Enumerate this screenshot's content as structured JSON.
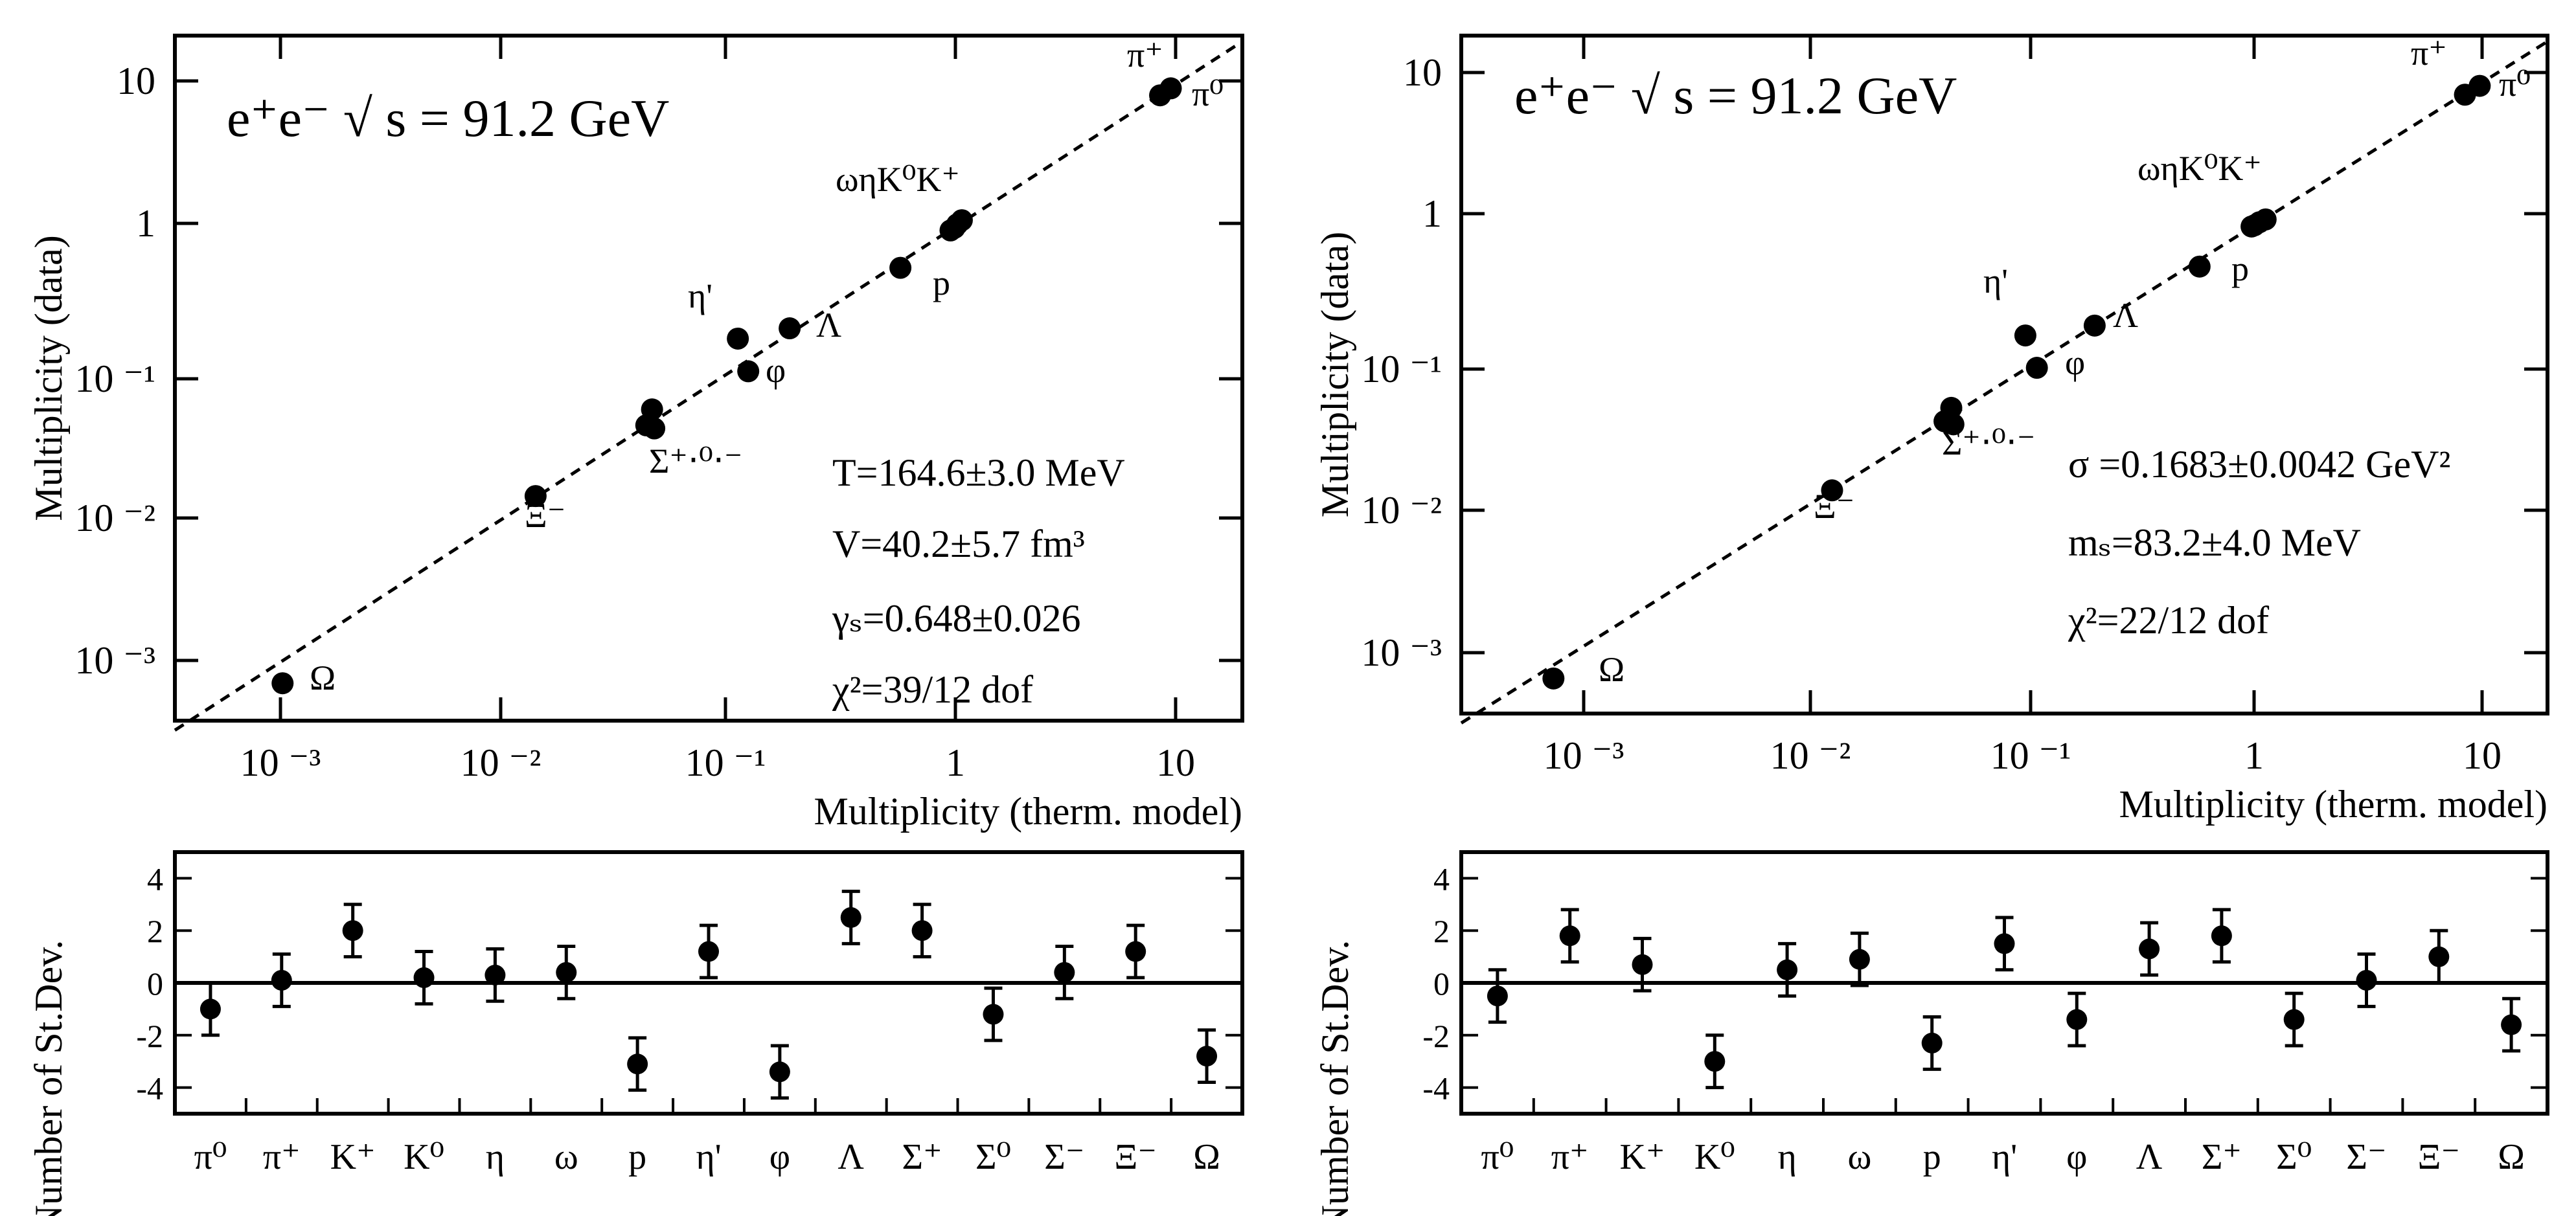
{
  "chart_data": [
    {
      "type": "scatter",
      "panel": "left-top",
      "title": "e⁺e⁻ √ s = 91.2 GeV",
      "xlabel": "Multiplicity (therm. model)",
      "ylabel": "Multiplicity (data)",
      "xscale": "log",
      "yscale": "log",
      "xlim": [
        0.0003,
        20
      ],
      "ylim": [
        0.00035,
        22
      ],
      "x_ticks": [
        "10 ⁻³",
        "10 ⁻²",
        "10 ⁻¹",
        "1",
        "10"
      ],
      "y_ticks": [
        "10 ⁻³",
        "10 ⁻²",
        "10 ⁻¹",
        "1",
        "10"
      ],
      "diagonal": "y = x (dashed)",
      "points": [
        {
          "x": 9.5,
          "y": 9.4,
          "label": "π⁰"
        },
        {
          "x": 8.5,
          "y": 8.4,
          "label": "π⁺"
        },
        {
          "x": 1.08,
          "y": 1.12,
          "label": "K⁺"
        },
        {
          "x": 1.03,
          "y": 1.05,
          "label": "K⁰"
        },
        {
          "x": 1.0,
          "y": 0.99,
          "label": "η"
        },
        {
          "x": 0.96,
          "y": 0.95,
          "label": "ω"
        },
        {
          "x": 0.57,
          "y": 0.52,
          "label": "p"
        },
        {
          "x": 0.105,
          "y": 0.166,
          "label": "η'"
        },
        {
          "x": 0.117,
          "y": 0.098,
          "label": "φ"
        },
        {
          "x": 0.18,
          "y": 0.196,
          "label": "Λ"
        },
        {
          "x": 0.043,
          "y": 0.053,
          "label": "Σ⁺"
        },
        {
          "x": 0.0405,
          "y": 0.041,
          "label": "Σ⁰"
        },
        {
          "x": 0.044,
          "y": 0.039,
          "label": "Σ⁻"
        },
        {
          "x": 0.0128,
          "y": 0.0131,
          "label": "Ξ⁻"
        },
        {
          "x": 0.00092,
          "y": 0.00064,
          "label": "Ω"
        }
      ],
      "point_labels": [
        "π⁺",
        "π⁰",
        "ωηK⁰K⁺",
        "p",
        "η'",
        "Λ",
        "φ",
        "Σ⁺‧⁰‧⁻",
        "Ξ⁻",
        "Ω"
      ],
      "params": [
        "T=164.6±3.0 MeV",
        "V=40.2±5.7 fm³",
        "γₛ=0.648±0.026",
        "χ²=39/12 dof"
      ]
    },
    {
      "type": "scatter",
      "panel": "right-top",
      "title": "e⁺e⁻ √ s = 91.2 GeV",
      "xlabel": "Multiplicity (therm. model)",
      "ylabel": "Multiplicity (data)",
      "xscale": "log",
      "yscale": "log",
      "xlim": [
        0.0003,
        20
      ],
      "ylim": [
        0.00035,
        22
      ],
      "x_ticks": [
        "10 ⁻³",
        "10 ⁻²",
        "10 ⁻¹",
        "1",
        "10"
      ],
      "y_ticks": [
        "10 ⁻³",
        "10 ⁻²",
        "10 ⁻¹",
        "1",
        "10"
      ],
      "diagonal": "y = x (dashed)",
      "points": [
        {
          "x": 10.0,
          "y": 9.7,
          "label": "π⁰"
        },
        {
          "x": 8.6,
          "y": 8.4,
          "label": "π⁺"
        },
        {
          "x": 1.12,
          "y": 1.1,
          "label": "K⁺"
        },
        {
          "x": 1.05,
          "y": 1.05,
          "label": "K⁰"
        },
        {
          "x": 1.0,
          "y": 1.0,
          "label": "η"
        },
        {
          "x": 0.97,
          "y": 0.98,
          "label": "ω"
        },
        {
          "x": 0.57,
          "y": 0.51,
          "label": "p"
        },
        {
          "x": 0.096,
          "y": 0.166,
          "label": "η'"
        },
        {
          "x": 0.108,
          "y": 0.098,
          "label": "φ"
        },
        {
          "x": 0.195,
          "y": 0.195,
          "label": "Λ"
        },
        {
          "x": 0.045,
          "y": 0.051,
          "label": "Σ⁺"
        },
        {
          "x": 0.042,
          "y": 0.041,
          "label": "Σ⁰"
        },
        {
          "x": 0.046,
          "y": 0.039,
          "label": "Σ⁻"
        },
        {
          "x": 0.0133,
          "y": 0.0133,
          "label": "Ξ⁻"
        },
        {
          "x": 0.00077,
          "y": 0.00062,
          "label": "Ω"
        }
      ],
      "point_labels": [
        "π⁺",
        "π⁰",
        "ωηK⁰K⁺",
        "p",
        "η'",
        "Λ",
        "φ",
        "Σ⁺‧⁰‧⁻",
        "Ξ⁻",
        "Ω"
      ],
      "params": [
        "σ =0.1683±0.0042 GeV²",
        "mₛ=83.2±4.0 MeV",
        "χ²=22/12 dof"
      ]
    },
    {
      "type": "scatter",
      "panel": "left-bottom",
      "ylabel": "Number of St.Dev.",
      "ylim": [
        -5,
        5
      ],
      "y_ticks": [
        "4",
        "2",
        "0",
        "-2",
        "-4"
      ],
      "categories": [
        "π⁰",
        "π⁺",
        "K⁺",
        "K⁰",
        "η",
        "ω",
        "p",
        "η'",
        "φ",
        "Λ",
        "Σ⁺",
        "Σ⁰",
        "Σ⁻",
        "Ξ⁻",
        "Ω"
      ],
      "values": [
        -1.0,
        0.1,
        2.0,
        0.2,
        0.3,
        0.4,
        -3.1,
        1.2,
        -3.4,
        2.5,
        2.0,
        -1.2,
        0.4,
        1.2,
        -2.8
      ],
      "errors": [
        1,
        1,
        1,
        1,
        1,
        1,
        1,
        1,
        1,
        1,
        1,
        1,
        1,
        1,
        1
      ]
    },
    {
      "type": "scatter",
      "panel": "right-bottom",
      "ylabel": "Number of St.Dev.",
      "ylim": [
        -5,
        5
      ],
      "y_ticks": [
        "4",
        "2",
        "0",
        "-2",
        "-4"
      ],
      "categories": [
        "π⁰",
        "π⁺",
        "K⁺",
        "K⁰",
        "η",
        "ω",
        "p",
        "η'",
        "φ",
        "Λ",
        "Σ⁺",
        "Σ⁰",
        "Σ⁻",
        "Ξ⁻",
        "Ω"
      ],
      "values": [
        -0.5,
        1.8,
        0.7,
        -3.0,
        0.5,
        0.9,
        -2.3,
        1.5,
        -1.4,
        1.3,
        1.8,
        -1.4,
        0.1,
        1.0,
        -1.6
      ],
      "errors": [
        1,
        1,
        1,
        1,
        1,
        1,
        1,
        1,
        1,
        1,
        1,
        1,
        1,
        1,
        1
      ]
    }
  ]
}
